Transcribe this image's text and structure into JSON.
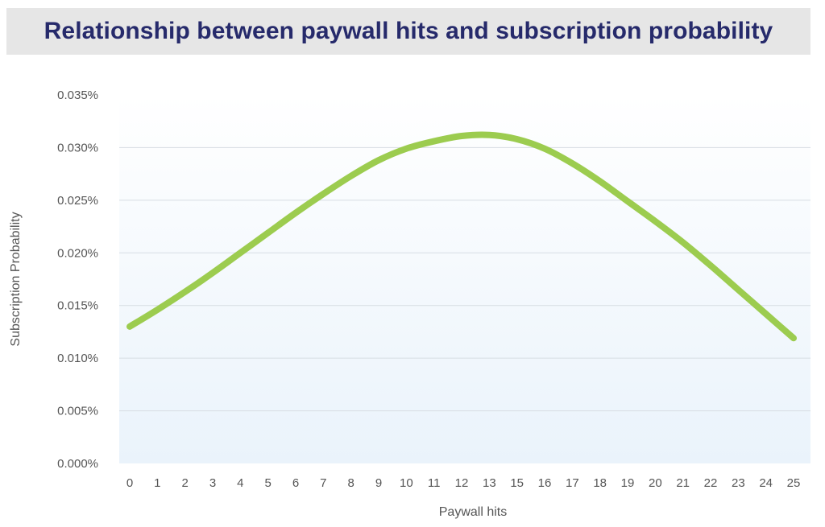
{
  "chart_data": {
    "type": "line",
    "title": "Relationship between paywall hits and subscription probability",
    "xlabel": "Paywall hits",
    "ylabel": "Subscription Probability",
    "x_ticks": [
      "0",
      "1",
      "2",
      "3",
      "4",
      "5",
      "6",
      "7",
      "8",
      "9",
      "10",
      "11",
      "12",
      "13",
      "15",
      "16",
      "17",
      "18",
      "19",
      "20",
      "21",
      "22",
      "23",
      "24",
      "25"
    ],
    "y_ticks": [
      "0.000%",
      "0.005%",
      "0.010%",
      "0.015%",
      "0.020%",
      "0.025%",
      "0.030%",
      "0.035%"
    ],
    "ylim": [
      0,
      0.035
    ],
    "grid": true,
    "series": [
      {
        "color": "#9ccc4f",
        "points": [
          {
            "x": 0,
            "y": 0.013
          },
          {
            "x": 1,
            "y": 0.0146
          },
          {
            "x": 2,
            "y": 0.0163
          },
          {
            "x": 3,
            "y": 0.0181
          },
          {
            "x": 4,
            "y": 0.02
          },
          {
            "x": 5,
            "y": 0.0219
          },
          {
            "x": 6,
            "y": 0.0238
          },
          {
            "x": 7,
            "y": 0.0256
          },
          {
            "x": 8,
            "y": 0.0273
          },
          {
            "x": 9,
            "y": 0.0288
          },
          {
            "x": 10,
            "y": 0.0299
          },
          {
            "x": 11,
            "y": 0.0306
          },
          {
            "x": 12,
            "y": 0.0311
          },
          {
            "x": 13,
            "y": 0.0312
          },
          {
            "x": 15,
            "y": 0.0308
          },
          {
            "x": 16,
            "y": 0.0299
          },
          {
            "x": 17,
            "y": 0.0285
          },
          {
            "x": 18,
            "y": 0.0268
          },
          {
            "x": 19,
            "y": 0.0249
          },
          {
            "x": 20,
            "y": 0.023
          },
          {
            "x": 21,
            "y": 0.021
          },
          {
            "x": 22,
            "y": 0.0188
          },
          {
            "x": 23,
            "y": 0.0165
          },
          {
            "x": 24,
            "y": 0.0142
          },
          {
            "x": 25,
            "y": 0.0119
          }
        ]
      }
    ]
  },
  "colors": {
    "title_text": "#262a6b",
    "title_banner": "#e6e6e6",
    "line": "#9ccc4f",
    "gridline": "#d7dde3",
    "plot_bg_top": "#ffffff",
    "plot_bg_bottom": "#eaf3fb"
  }
}
